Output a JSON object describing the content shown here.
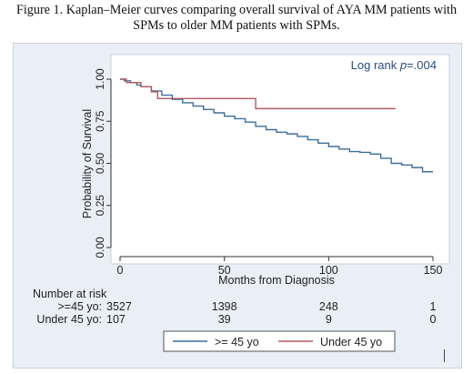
{
  "caption": {
    "line1": "Figure 1. Kaplan–Meier curves comparing overall survival of AYA MM patients with",
    "line2": "SPMs to older MM patients with SPMs."
  },
  "chart_data": {
    "type": "line",
    "title": "",
    "annotation": {
      "prefix": "Log rank ",
      "p_italic": "p",
      "value": "=.004"
    },
    "xlabel": "Months from Diagnosis",
    "ylabel": "Probability of Survival",
    "xlim": [
      0,
      150
    ],
    "ylim": [
      0,
      1
    ],
    "xticks": [
      0,
      50,
      100,
      150
    ],
    "yticks": [
      0,
      0.25,
      0.5,
      0.75,
      1
    ],
    "xtick_labels": [
      "0",
      "50",
      "100",
      "150"
    ],
    "ytick_labels": [
      "0.00",
      "0.25",
      "0.50",
      "0.75",
      "1.00"
    ],
    "grid": false,
    "legend_position": "bottom",
    "series": [
      {
        "name": ">= 45 yo",
        "color": "#3c6e9c",
        "x": [
          0,
          2,
          5,
          8,
          10,
          15,
          20,
          25,
          30,
          35,
          40,
          45,
          50,
          55,
          60,
          65,
          70,
          75,
          80,
          85,
          90,
          95,
          100,
          105,
          110,
          115,
          120,
          125,
          130,
          135,
          140,
          145,
          150
        ],
        "y": [
          1.0,
          0.99,
          0.98,
          0.965,
          0.955,
          0.93,
          0.905,
          0.88,
          0.86,
          0.84,
          0.82,
          0.8,
          0.78,
          0.765,
          0.745,
          0.72,
          0.7,
          0.685,
          0.675,
          0.66,
          0.64,
          0.62,
          0.6,
          0.585,
          0.57,
          0.565,
          0.555,
          0.53,
          0.5,
          0.49,
          0.475,
          0.45,
          0.45
        ]
      },
      {
        "name": "Under 45 yo",
        "color": "#b05a5e",
        "x": [
          0,
          3,
          3,
          10,
          10,
          15,
          15,
          18,
          18,
          65,
          65,
          132
        ],
        "y": [
          1.0,
          1.0,
          0.98,
          0.98,
          0.955,
          0.955,
          0.925,
          0.925,
          0.885,
          0.885,
          0.825,
          0.825
        ]
      }
    ]
  },
  "risk_table": {
    "title": "Number at risk",
    "rows": [
      {
        "label": ">=45 yo:",
        "values": [
          "3527",
          "1398",
          "248",
          "1"
        ]
      },
      {
        "label": "Under 45 yo:",
        "values": [
          "107",
          "39",
          "9",
          "0"
        ]
      }
    ]
  }
}
